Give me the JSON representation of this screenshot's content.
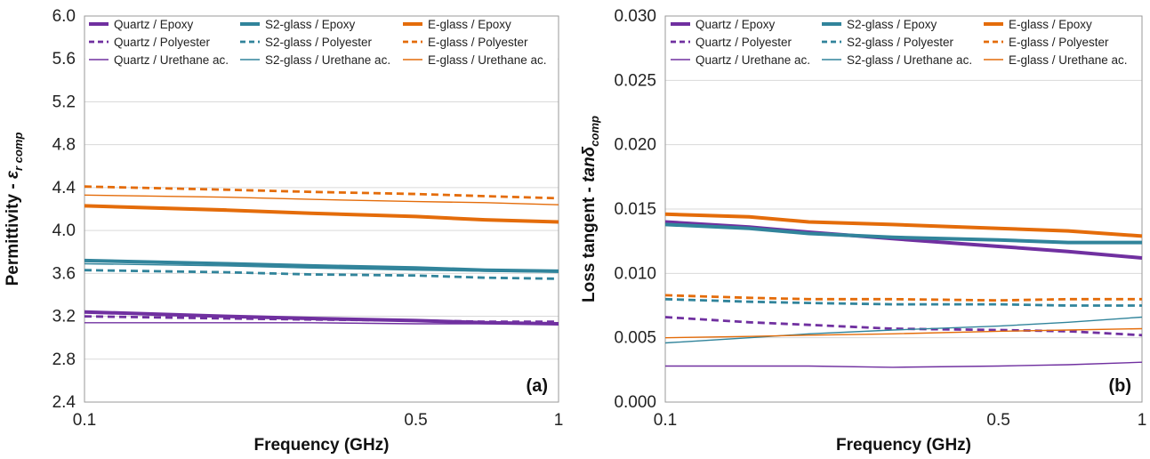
{
  "colors": {
    "quartz": "#7030A0",
    "s2glass": "#31849B",
    "eglass": "#E46C0A"
  },
  "chart_data": [
    {
      "type": "line",
      "panel_label": "(a)",
      "xlabel": "Frequency (GHz)",
      "ylabel_main": "Permittivity  - ",
      "ylabel_symbol": "ε",
      "ylabel_sub": "r comp",
      "x_scale": "log",
      "x": [
        0.1,
        0.2,
        0.3,
        0.5,
        0.7,
        1.0
      ],
      "xticks": [
        0.1,
        0.5,
        1
      ],
      "xtick_labels": [
        "0.1",
        "0.5",
        "1"
      ],
      "ylim": [
        2.4,
        6.0
      ],
      "yticks": [
        "2.4",
        "2.8",
        "3.2",
        "3.6",
        "4.0",
        "4.4",
        "4.8",
        "5.2",
        "5.6",
        "6.0"
      ],
      "grid": "horizontal",
      "legend_position": "top",
      "series": [
        {
          "name": "Quartz / Epoxy",
          "material": "quartz",
          "style": "thick",
          "values": [
            3.24,
            3.2,
            3.18,
            3.16,
            3.14,
            3.13
          ]
        },
        {
          "name": "S2-glass / Epoxy",
          "material": "s2glass",
          "style": "thick",
          "values": [
            3.72,
            3.69,
            3.67,
            3.65,
            3.63,
            3.62
          ]
        },
        {
          "name": "E-glass / Epoxy",
          "material": "eglass",
          "style": "thick",
          "values": [
            4.23,
            4.19,
            4.16,
            4.13,
            4.1,
            4.08
          ]
        },
        {
          "name": "Quartz / Polyester",
          "material": "quartz",
          "style": "dashed",
          "values": [
            3.2,
            3.18,
            3.17,
            3.16,
            3.15,
            3.15
          ]
        },
        {
          "name": "S2-glass / Polyester",
          "material": "s2glass",
          "style": "dashed",
          "values": [
            3.63,
            3.61,
            3.59,
            3.58,
            3.56,
            3.55
          ]
        },
        {
          "name": "E-glass / Polyester",
          "material": "eglass",
          "style": "dashed",
          "values": [
            4.41,
            4.38,
            4.36,
            4.34,
            4.32,
            4.3
          ]
        },
        {
          "name": "Quartz / Urethane ac.",
          "material": "quartz",
          "style": "thin",
          "values": [
            3.14,
            3.14,
            3.14,
            3.13,
            3.13,
            3.13
          ]
        },
        {
          "name": "S2-glass / Urethane ac.",
          "material": "s2glass",
          "style": "thin",
          "values": [
            3.69,
            3.67,
            3.65,
            3.63,
            3.62,
            3.61
          ]
        },
        {
          "name": "E-glass / Urethane ac.",
          "material": "eglass",
          "style": "thin",
          "values": [
            4.33,
            4.31,
            4.29,
            4.27,
            4.26,
            4.24
          ]
        }
      ]
    },
    {
      "type": "line",
      "panel_label": "(b)",
      "xlabel": "Frequency (GHz)",
      "ylabel_main": "Loss tangent  - ",
      "ylabel_symbol": "tanδ",
      "ylabel_sub": "comp",
      "x_scale": "log",
      "x": [
        0.1,
        0.15,
        0.2,
        0.3,
        0.5,
        0.7,
        1.0
      ],
      "xticks": [
        0.1,
        0.5,
        1
      ],
      "xtick_labels": [
        "0.1",
        "0.5",
        "1"
      ],
      "ylim": [
        0.0,
        0.03
      ],
      "yticks": [
        "0.000",
        "0.005",
        "0.010",
        "0.015",
        "0.020",
        "0.025",
        "0.030"
      ],
      "grid": "horizontal",
      "legend_position": "top",
      "series": [
        {
          "name": "Quartz / Epoxy",
          "material": "quartz",
          "style": "thick",
          "values": [
            0.014,
            0.0136,
            0.0132,
            0.0127,
            0.0121,
            0.0117,
            0.0112
          ]
        },
        {
          "name": "S2-glass / Epoxy",
          "material": "s2glass",
          "style": "thick",
          "values": [
            0.0138,
            0.0135,
            0.0131,
            0.0128,
            0.0126,
            0.0124,
            0.0124
          ]
        },
        {
          "name": "E-glass / Epoxy",
          "material": "eglass",
          "style": "thick",
          "values": [
            0.0146,
            0.0144,
            0.014,
            0.0138,
            0.0135,
            0.0133,
            0.0129
          ]
        },
        {
          "name": "Quartz / Polyester",
          "material": "quartz",
          "style": "dashed",
          "values": [
            0.0066,
            0.0062,
            0.006,
            0.0057,
            0.0056,
            0.0055,
            0.0052
          ]
        },
        {
          "name": "S2-glass / Polyester",
          "material": "s2glass",
          "style": "dashed",
          "values": [
            0.008,
            0.0078,
            0.0077,
            0.0076,
            0.0076,
            0.0075,
            0.0075
          ]
        },
        {
          "name": "E-glass / Polyester",
          "material": "eglass",
          "style": "dashed",
          "values": [
            0.0083,
            0.0081,
            0.008,
            0.008,
            0.0079,
            0.008,
            0.008
          ]
        },
        {
          "name": "Quartz / Urethane ac.",
          "material": "quartz",
          "style": "thin",
          "values": [
            0.0028,
            0.0028,
            0.0028,
            0.0027,
            0.0028,
            0.0029,
            0.0031
          ]
        },
        {
          "name": "S2-glass / Urethane ac.",
          "material": "s2glass",
          "style": "thin",
          "values": [
            0.0046,
            0.005,
            0.0053,
            0.0056,
            0.0059,
            0.0062,
            0.0066
          ]
        },
        {
          "name": "E-glass / Urethane ac.",
          "material": "eglass",
          "style": "thin",
          "values": [
            0.005,
            0.0051,
            0.0052,
            0.0053,
            0.0055,
            0.0056,
            0.0057
          ]
        }
      ]
    }
  ]
}
